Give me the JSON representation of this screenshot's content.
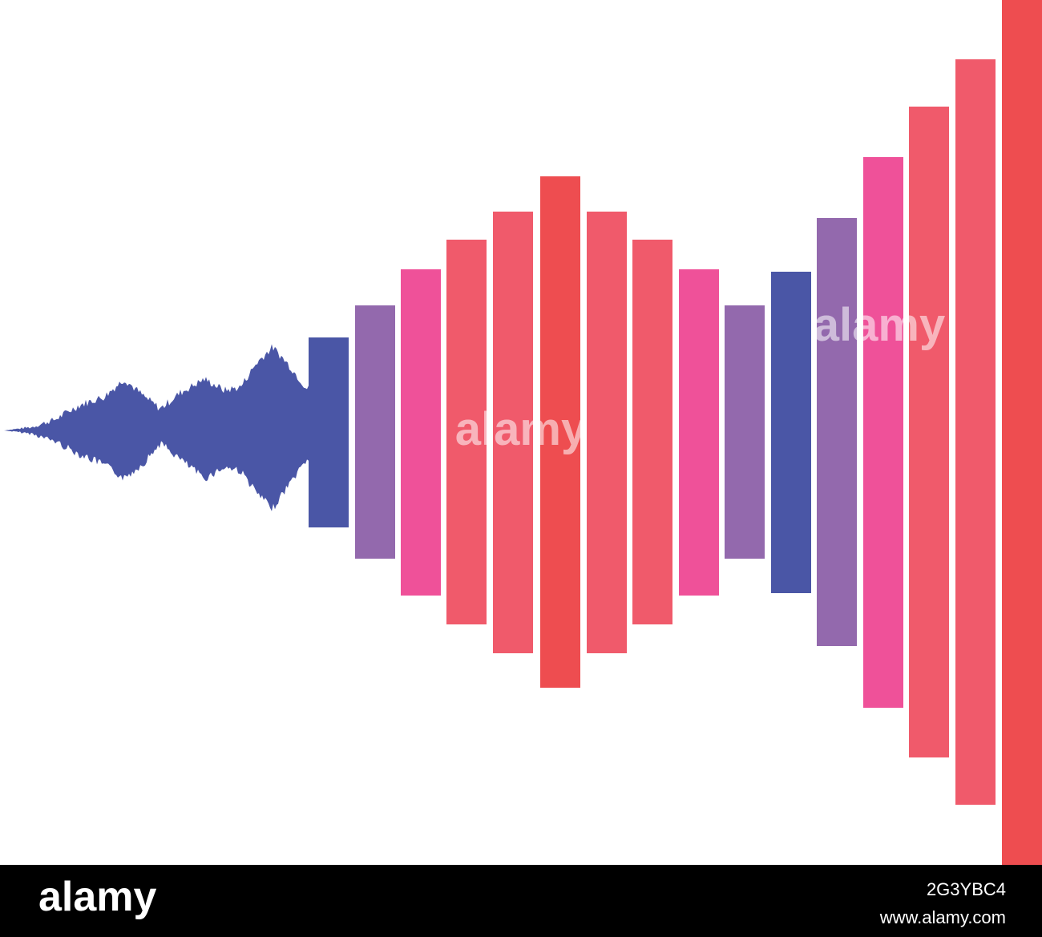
{
  "watermark": "alamy",
  "footer": {
    "logo": "alamy",
    "image_id": "2G3YBC4",
    "url": "www.alamy.com"
  }
}
